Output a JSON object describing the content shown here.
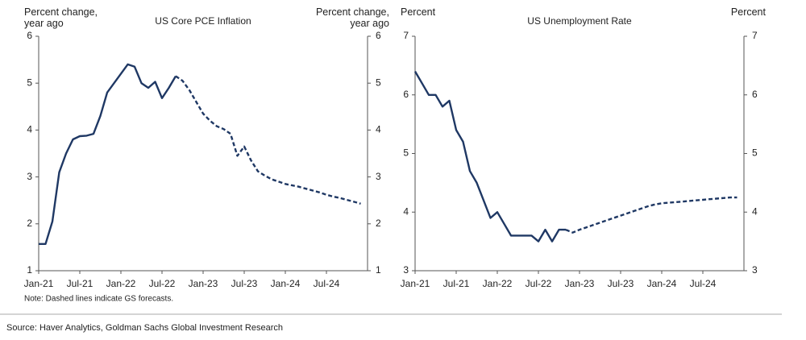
{
  "chart_data": [
    {
      "type": "line",
      "title": "US Core PCE Inflation",
      "y_label": "Percent change, year ago",
      "y2_label": "Percent change, year ago",
      "note": "Note: Dashed lines indicate GS forecasts.",
      "categories": [
        "Jan-21",
        null,
        null,
        null,
        null,
        null,
        "Jul-21",
        null,
        null,
        null,
        null,
        null,
        "Jan-22",
        null,
        null,
        null,
        null,
        null,
        "Jul-22",
        null,
        null,
        null,
        null,
        null,
        "Jan-23",
        null,
        null,
        null,
        null,
        null,
        "Jul-23",
        null,
        null,
        null,
        null,
        null,
        "Jan-24",
        null,
        null,
        null,
        null,
        null,
        "Jul-24",
        null,
        null,
        null,
        null,
        null
      ],
      "ylim": [
        1,
        6
      ],
      "yticks": [
        1,
        2,
        3,
        4,
        5,
        6
      ],
      "series": [
        {
          "color": "#1f3864",
          "style": "solid",
          "values": [
            1.57,
            1.57,
            2.05,
            3.1,
            3.5,
            3.8,
            3.87,
            3.88,
            3.92,
            4.3,
            4.8,
            5.0,
            5.2,
            5.4,
            5.35,
            5.0,
            4.9,
            5.03,
            4.68,
            4.9,
            5.15,
            null,
            null,
            null,
            null,
            null,
            null,
            null,
            null,
            null,
            null,
            null,
            null,
            null,
            null,
            null,
            null,
            null,
            null,
            null,
            null,
            null,
            null,
            null,
            null,
            null,
            null,
            null
          ]
        },
        {
          "color": "#1f3864",
          "style": "dashed",
          "values": [
            null,
            null,
            null,
            null,
            null,
            null,
            null,
            null,
            null,
            null,
            null,
            null,
            null,
            null,
            null,
            null,
            null,
            null,
            null,
            null,
            5.15,
            5.05,
            4.85,
            4.6,
            4.35,
            4.2,
            4.08,
            4.02,
            3.92,
            3.45,
            3.65,
            3.35,
            3.12,
            3.03,
            2.95,
            2.9,
            2.85,
            2.82,
            2.79,
            2.75,
            2.71,
            2.67,
            2.62,
            2.58,
            2.55,
            2.51,
            2.47,
            2.43
          ]
        }
      ]
    },
    {
      "type": "line",
      "title": "US Unemployment Rate",
      "y_label": "Percent",
      "y2_label": "Percent",
      "categories": [
        "Jan-21",
        null,
        null,
        null,
        null,
        null,
        "Jul-21",
        null,
        null,
        null,
        null,
        null,
        "Jan-22",
        null,
        null,
        null,
        null,
        null,
        "Jul-22",
        null,
        null,
        null,
        null,
        null,
        "Jan-23",
        null,
        null,
        null,
        null,
        null,
        "Jul-23",
        null,
        null,
        null,
        null,
        null,
        "Jan-24",
        null,
        null,
        null,
        null,
        null,
        "Jul-24",
        null,
        null,
        null,
        null,
        null
      ],
      "ylim": [
        3,
        7
      ],
      "yticks": [
        3,
        4,
        5,
        6,
        7
      ],
      "series": [
        {
          "color": "#1f3864",
          "style": "solid",
          "values": [
            6.4,
            6.2,
            6.0,
            6.0,
            5.8,
            5.9,
            5.4,
            5.2,
            4.7,
            4.5,
            4.2,
            3.9,
            4.0,
            3.8,
            3.6,
            3.6,
            3.6,
            3.6,
            3.5,
            3.7,
            3.5,
            3.7,
            3.7,
            null,
            null,
            null,
            null,
            null,
            null,
            null,
            null,
            null,
            null,
            null,
            null,
            null,
            null,
            null,
            null,
            null,
            null,
            null,
            null,
            null,
            null,
            null,
            null,
            null
          ]
        },
        {
          "color": "#1f3864",
          "style": "dashed",
          "values": [
            null,
            null,
            null,
            null,
            null,
            null,
            null,
            null,
            null,
            null,
            null,
            null,
            null,
            null,
            null,
            null,
            null,
            null,
            null,
            null,
            null,
            null,
            3.7,
            3.65,
            3.7,
            3.74,
            3.78,
            3.82,
            3.86,
            3.9,
            3.94,
            3.98,
            4.02,
            4.06,
            4.1,
            4.13,
            4.15,
            4.16,
            4.17,
            4.18,
            4.19,
            4.2,
            4.21,
            4.22,
            4.23,
            4.24,
            4.25,
            4.25
          ]
        }
      ]
    }
  ],
  "source": "Source: Haver Analytics, Goldman Sachs Global Investment Research"
}
